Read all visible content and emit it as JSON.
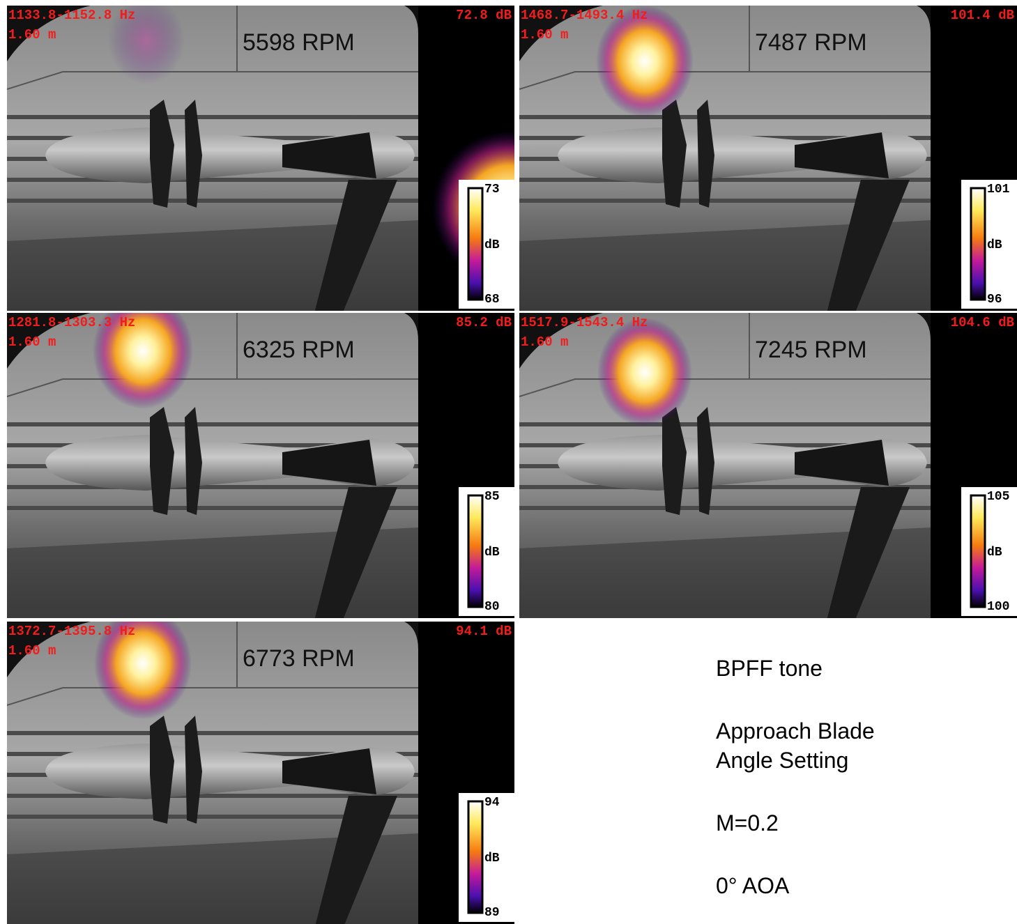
{
  "panels": [
    {
      "frequency": "1133.8-1152.8 Hz",
      "distance": "1.60 m",
      "level": "72.8 dB",
      "rpm": "5598 RPM",
      "colorbar": {
        "max": "73",
        "unit": "dB",
        "min": "68"
      }
    },
    {
      "frequency": "1468.7-1493.4 Hz",
      "distance": "1.60 m",
      "level": "101.4 dB",
      "rpm": "7487 RPM",
      "colorbar": {
        "max": "101",
        "unit": "dB",
        "min": "96"
      }
    },
    {
      "frequency": "1281.8-1303.3 Hz",
      "distance": "1.60 m",
      "level": "85.2 dB",
      "rpm": "6325 RPM",
      "colorbar": {
        "max": "85",
        "unit": "dB",
        "min": "80"
      }
    },
    {
      "frequency": "1517.9-1543.4 Hz",
      "distance": "1.60 m",
      "level": "104.6 dB",
      "rpm": "7245 RPM",
      "colorbar": {
        "max": "105",
        "unit": "dB",
        "min": "100"
      }
    },
    {
      "frequency": "1372.7-1395.8 Hz",
      "distance": "1.60 m",
      "level": "94.1 dB",
      "rpm": "6773 RPM",
      "colorbar": {
        "max": "94",
        "unit": "dB",
        "min": "89"
      }
    }
  ],
  "notes": {
    "tone": "BPFF tone",
    "setting": [
      "Approach Blade",
      "Angle Setting"
    ],
    "mach": "M=0.2",
    "aoa": "0° AOA"
  }
}
